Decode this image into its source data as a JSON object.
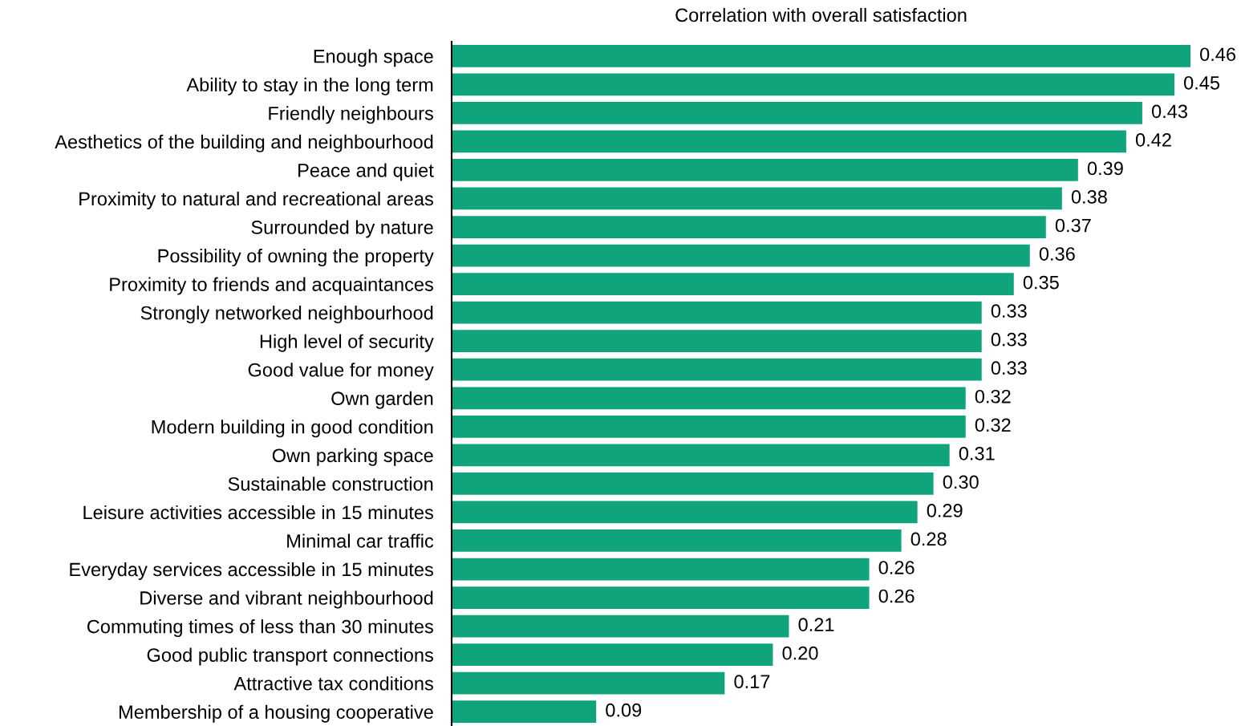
{
  "chart_data": {
    "type": "bar",
    "orientation": "horizontal",
    "title": "Correlation with overall satisfaction",
    "data_labels": true,
    "tick_labels": "y",
    "grid": false,
    "legend": false,
    "categories": [
      "Enough space",
      "Ability to stay in the long term",
      "Friendly neighbours",
      "Aesthetics of the building and neighbourhood",
      "Peace and quiet",
      "Proximity to natural and recreational areas",
      "Surrounded by nature",
      "Possibility of owning the property",
      "Proximity to friends and acquaintances",
      "Strongly networked neighbourhood",
      "High level of security",
      "Good value for money",
      "Own garden",
      "Modern building in good condition",
      "Own parking space",
      "Sustainable construction",
      "Leisure activities accessible in 15 minutes",
      "Minimal car traffic",
      "Everyday services accessible in 15 minutes",
      "Diverse and vibrant neighbourhood",
      "Commuting times of less than 30 minutes",
      "Good public transport connections",
      "Attractive tax conditions",
      "Membership of a housing cooperative"
    ],
    "values": [
      0.46,
      0.45,
      0.43,
      0.42,
      0.39,
      0.38,
      0.37,
      0.36,
      0.35,
      0.33,
      0.33,
      0.33,
      0.32,
      0.32,
      0.31,
      0.3,
      0.29,
      0.28,
      0.26,
      0.26,
      0.21,
      0.2,
      0.17,
      0.09
    ],
    "value_labels": [
      "0.46",
      "0.45",
      "0.43",
      "0.42",
      "0.39",
      "0.38",
      "0.37",
      "0.36",
      "0.35",
      "0.33",
      "0.33",
      "0.33",
      "0.32",
      "0.32",
      "0.31",
      "0.30",
      "0.29",
      "0.28",
      "0.26",
      "0.26",
      "0.21",
      "0.20",
      "0.17",
      "0.09"
    ],
    "color": "#10a47c"
  }
}
